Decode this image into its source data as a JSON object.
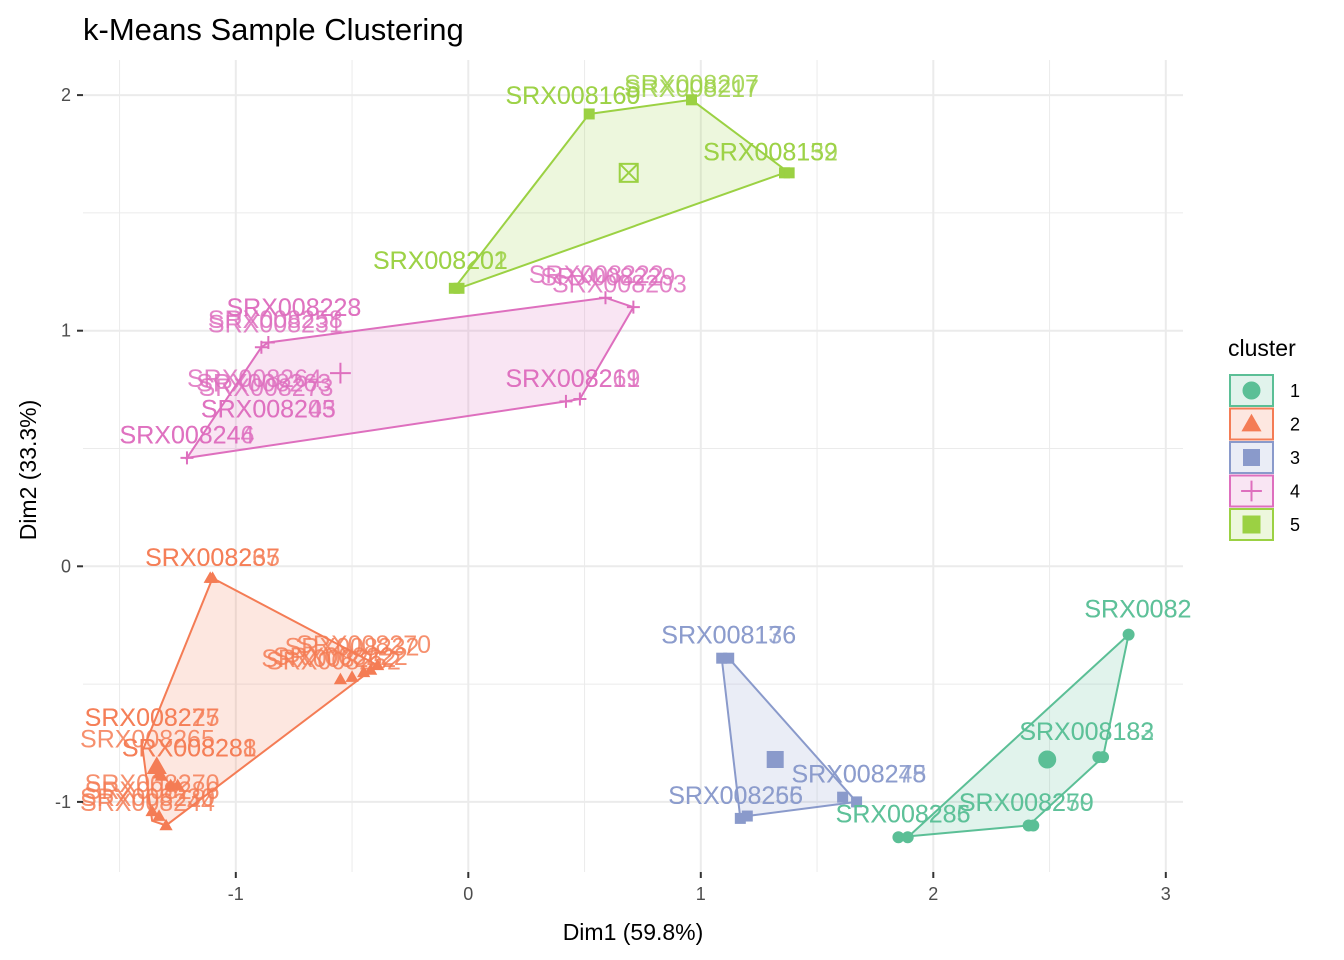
{
  "chart_data": {
    "type": "scatter",
    "title": "k-Means Sample Clustering",
    "xlabel": "Dim1 (59.8%)",
    "ylabel": "Dim2 (33.3%)",
    "xlim": [
      -1.58,
      3.05
    ],
    "ylim": [
      -1.3,
      2.14
    ],
    "x_ticks": [
      -1,
      0,
      1,
      2,
      3
    ],
    "y_ticks": [
      -1,
      0,
      1,
      2
    ],
    "grid": true,
    "legend": {
      "title": "cluster",
      "position": "right"
    },
    "clusters": [
      {
        "name": "1",
        "color": "#5bbf96",
        "shape": "circle",
        "center": [
          2.49,
          -0.82
        ],
        "hull": [
          [
            1.85,
            -1.15
          ],
          [
            2.41,
            -1.1
          ],
          [
            2.73,
            -0.81
          ],
          [
            2.84,
            -0.29
          ],
          [
            1.89,
            -1.15
          ]
        ],
        "points": [
          {
            "x": 2.84,
            "y": -0.29,
            "label": "SRX0082"
          },
          {
            "x": 2.71,
            "y": -0.81,
            "label": "SRX008182"
          },
          {
            "x": 2.73,
            "y": -0.81,
            "label": "SRX008183"
          },
          {
            "x": 2.41,
            "y": -1.1,
            "label": "SRX008270"
          },
          {
            "x": 2.43,
            "y": -1.1,
            "label": "SRX008259"
          },
          {
            "x": 1.85,
            "y": -1.15,
            "label": "SRX008285"
          },
          {
            "x": 1.89,
            "y": -1.15,
            "label": "SRX008286"
          }
        ]
      },
      {
        "name": "2",
        "color": "#f47c55",
        "shape": "triangle",
        "center": [
          -1.34,
          -0.85
        ],
        "hull": [
          [
            -1.1,
            -0.05
          ],
          [
            -0.39,
            -0.42
          ],
          [
            -1.3,
            -1.1
          ],
          [
            -1.36,
            -1.08
          ],
          [
            -1.4,
            -0.78
          ]
        ],
        "points": [
          {
            "x": -1.1,
            "y": -0.05,
            "label": "SRX008235"
          },
          {
            "x": -1.11,
            "y": -0.05,
            "label": "SRX008267"
          },
          {
            "x": -0.55,
            "y": -0.48,
            "label": "SRX008222"
          },
          {
            "x": -0.5,
            "y": -0.47,
            "label": "SRX008232"
          },
          {
            "x": -0.45,
            "y": -0.45,
            "label": "SRX008262"
          },
          {
            "x": -0.42,
            "y": -0.44,
            "label": "SRX008270"
          },
          {
            "x": -0.39,
            "y": -0.42,
            "label": "SRX008252"
          },
          {
            "x": -1.33,
            "y": -0.88,
            "label": "SRX008275"
          },
          {
            "x": -1.32,
            "y": -0.89,
            "label": "SRX008227"
          },
          {
            "x": -1.28,
            "y": -0.93,
            "label": "SRX008281"
          },
          {
            "x": -1.25,
            "y": -0.93,
            "label": "SRX008288"
          },
          {
            "x": -1.36,
            "y": -1.04,
            "label": "SRX008286"
          },
          {
            "x": -1.33,
            "y": -1.06,
            "label": "SRX008230"
          },
          {
            "x": -1.3,
            "y": -1.1,
            "label": "SRX008244"
          }
        ]
      },
      {
        "name": "3",
        "color": "#8a9acb",
        "shape": "square",
        "center": [
          1.32,
          -0.82
        ],
        "hull": [
          [
            1.09,
            -0.39
          ],
          [
            1.12,
            -0.39
          ],
          [
            1.67,
            -1.0
          ],
          [
            1.2,
            -1.06
          ],
          [
            1.17,
            -1.07
          ]
        ],
        "points": [
          {
            "x": 1.09,
            "y": -0.39,
            "label": "SRX008176"
          },
          {
            "x": 1.12,
            "y": -0.39,
            "label": "SRX008136"
          },
          {
            "x": 1.61,
            "y": -0.98,
            "label": "SRX008245"
          },
          {
            "x": 1.67,
            "y": -1.0,
            "label": "SRX008278"
          },
          {
            "x": 1.2,
            "y": -1.06,
            "label": "SRX008256"
          },
          {
            "x": 1.17,
            "y": -1.07,
            "label": "SRX008265"
          }
        ]
      },
      {
        "name": "4",
        "color": "#de6fbe",
        "shape": "plus",
        "center": [
          -0.55,
          0.82
        ],
        "hull": [
          [
            -1.21,
            0.46
          ],
          [
            -0.89,
            0.93
          ],
          [
            -0.86,
            0.95
          ],
          [
            0.59,
            1.14
          ],
          [
            0.71,
            1.1
          ],
          [
            0.48,
            0.71
          ],
          [
            0.42,
            0.7
          ]
        ],
        "points": [
          {
            "x": -0.89,
            "y": 0.93,
            "label": "SRX008223"
          },
          {
            "x": -0.86,
            "y": 0.95,
            "label": "SRX008228"
          },
          {
            "x": 0.59,
            "y": 1.14,
            "label": "SRX008222"
          },
          {
            "x": 0.71,
            "y": 1.1,
            "label": "SRX008203"
          },
          {
            "x": 0.42,
            "y": 0.7,
            "label": "SRX008219"
          },
          {
            "x": 0.48,
            "y": 0.71,
            "label": "SRX008261"
          },
          {
            "x": -1.21,
            "y": 0.46,
            "label": "SRX008244"
          }
        ]
      },
      {
        "name": "5",
        "color": "#9bd143",
        "shape": "square-cross",
        "center": [
          0.69,
          1.67
        ],
        "hull": [
          [
            -0.06,
            1.18
          ],
          [
            0.52,
            1.92
          ],
          [
            0.96,
            1.98
          ],
          [
            1.38,
            1.67
          ],
          [
            1.36,
            1.67
          ],
          [
            -0.04,
            1.18
          ]
        ],
        "points": [
          {
            "x": 0.52,
            "y": 1.92,
            "label": "SRX008169"
          },
          {
            "x": 0.96,
            "y": 1.98,
            "label": "SRX008207"
          },
          {
            "x": 1.36,
            "y": 1.67,
            "label": "SRX008159"
          },
          {
            "x": 1.38,
            "y": 1.67,
            "label": "SRX008132"
          },
          {
            "x": -0.06,
            "y": 1.18,
            "label": "SRX008201"
          },
          {
            "x": -0.04,
            "y": 1.18,
            "label": "SRX008202"
          }
        ]
      }
    ],
    "labels": [
      {
        "cluster": "5",
        "x": 0.96,
        "y": 2.05,
        "text": "SRX008207"
      },
      {
        "cluster": "5",
        "x": 0.96,
        "y": 2.03,
        "text": "SRX008217"
      },
      {
        "cluster": "5",
        "x": 0.45,
        "y": 2.0,
        "text": "SRX008169"
      },
      {
        "cluster": "5",
        "x": 0.45,
        "y": 2.0,
        "text": "SRX008160"
      },
      {
        "cluster": "5",
        "x": 1.3,
        "y": 1.76,
        "text": "SRX008159"
      },
      {
        "cluster": "5",
        "x": 1.3,
        "y": 1.76,
        "text": "SRX008132"
      },
      {
        "cluster": "5",
        "x": -0.12,
        "y": 1.3,
        "text": "SRX008201"
      },
      {
        "cluster": "5",
        "x": -0.12,
        "y": 1.3,
        "text": "SRX008202"
      },
      {
        "cluster": "4",
        "x": 0.55,
        "y": 1.24,
        "text": "SRX008222"
      },
      {
        "cluster": "4",
        "x": 0.6,
        "y": 1.23,
        "text": "SRX008229"
      },
      {
        "cluster": "4",
        "x": 0.65,
        "y": 1.2,
        "text": "SRX008203"
      },
      {
        "cluster": "4",
        "x": -0.75,
        "y": 1.1,
        "text": "SRX008228"
      },
      {
        "cluster": "4",
        "x": -0.75,
        "y": 1.1,
        "text": "SRX008223"
      },
      {
        "cluster": "4",
        "x": -0.83,
        "y": 1.05,
        "text": "SRX008258"
      },
      {
        "cluster": "4",
        "x": -0.83,
        "y": 1.03,
        "text": "SRX008231"
      },
      {
        "cluster": "4",
        "x": 0.45,
        "y": 0.8,
        "text": "SRX008219"
      },
      {
        "cluster": "4",
        "x": 0.45,
        "y": 0.8,
        "text": "SRX008261"
      },
      {
        "cluster": "4",
        "x": -0.92,
        "y": 0.8,
        "text": "SRX008264"
      },
      {
        "cluster": "4",
        "x": -0.88,
        "y": 0.78,
        "text": "SRX008263"
      },
      {
        "cluster": "4",
        "x": -0.87,
        "y": 0.76,
        "text": "SRX008273"
      },
      {
        "cluster": "4",
        "x": -0.86,
        "y": 0.67,
        "text": "SRX008205"
      },
      {
        "cluster": "4",
        "x": -0.86,
        "y": 0.67,
        "text": "SRX008243"
      },
      {
        "cluster": "4",
        "x": -1.21,
        "y": 0.56,
        "text": "SRX008244"
      },
      {
        "cluster": "4",
        "x": -1.21,
        "y": 0.56,
        "text": "SRX008246"
      },
      {
        "cluster": "2",
        "x": -1.1,
        "y": 0.04,
        "text": "SRX008235"
      },
      {
        "cluster": "2",
        "x": -1.1,
        "y": 0.04,
        "text": "SRX008267"
      },
      {
        "cluster": "2",
        "x": -0.45,
        "y": -0.33,
        "text": "SRX008270"
      },
      {
        "cluster": "2",
        "x": -0.5,
        "y": -0.34,
        "text": "SRX008232"
      },
      {
        "cluster": "2",
        "x": -0.55,
        "y": -0.38,
        "text": "SRX008222"
      },
      {
        "cluster": "2",
        "x": -0.6,
        "y": -0.39,
        "text": "SRX008262"
      },
      {
        "cluster": "2",
        "x": -0.58,
        "y": -0.4,
        "text": "SRX008252"
      },
      {
        "cluster": "2",
        "x": -1.36,
        "y": -0.64,
        "text": "SRX008275"
      },
      {
        "cluster": "2",
        "x": -1.36,
        "y": -0.64,
        "text": "SRX008227"
      },
      {
        "cluster": "2",
        "x": -1.38,
        "y": -0.73,
        "text": "SRX008265"
      },
      {
        "cluster": "2",
        "x": -1.2,
        "y": -0.77,
        "text": "SRX008281"
      },
      {
        "cluster": "2",
        "x": -1.2,
        "y": -0.77,
        "text": "SRX008288"
      },
      {
        "cluster": "2",
        "x": -1.36,
        "y": -0.92,
        "text": "SRX008270"
      },
      {
        "cluster": "2",
        "x": -1.36,
        "y": -0.95,
        "text": "SRX008286"
      },
      {
        "cluster": "2",
        "x": -1.38,
        "y": -0.98,
        "text": "SRX008230"
      },
      {
        "cluster": "2",
        "x": -1.38,
        "y": -1.0,
        "text": "SRX008244"
      },
      {
        "cluster": "3",
        "x": 1.12,
        "y": -0.29,
        "text": "SRX008176"
      },
      {
        "cluster": "3",
        "x": 1.12,
        "y": -0.29,
        "text": "SRX008136"
      },
      {
        "cluster": "3",
        "x": 1.68,
        "y": -0.88,
        "text": "SRX008245"
      },
      {
        "cluster": "3",
        "x": 1.68,
        "y": -0.88,
        "text": "SRX008278"
      },
      {
        "cluster": "3",
        "x": 1.15,
        "y": -0.97,
        "text": "SRX008256"
      },
      {
        "cluster": "3",
        "x": 1.15,
        "y": -0.97,
        "text": "SRX008265"
      },
      {
        "cluster": "1",
        "x": 2.88,
        "y": -0.18,
        "text": "SRX0082"
      },
      {
        "cluster": "1",
        "x": 2.88,
        "y": -0.18,
        "text": "SRX0082"
      },
      {
        "cluster": "1",
        "x": 2.66,
        "y": -0.7,
        "text": "SRX008182"
      },
      {
        "cluster": "1",
        "x": 2.66,
        "y": -0.7,
        "text": "SRX008183"
      },
      {
        "cluster": "1",
        "x": 2.4,
        "y": -1.0,
        "text": "SRX008270"
      },
      {
        "cluster": "1",
        "x": 2.4,
        "y": -1.0,
        "text": "SRX008259"
      },
      {
        "cluster": "1",
        "x": 1.87,
        "y": -1.05,
        "text": "SRX008285"
      },
      {
        "cluster": "1",
        "x": 1.87,
        "y": -1.05,
        "text": "SRX008286"
      }
    ]
  }
}
